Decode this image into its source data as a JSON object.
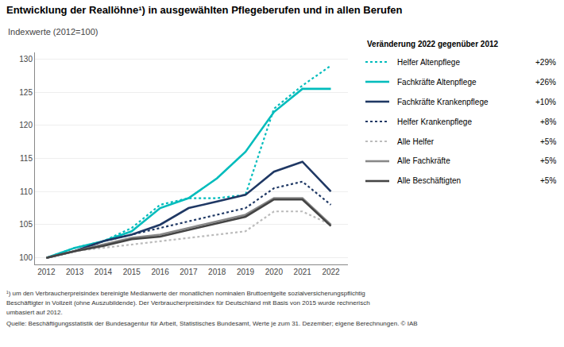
{
  "chart_data": {
    "type": "line",
    "title": "Entwicklung der Reallöhne¹) in ausgewählten Pflegeberufen und in allen Berufen",
    "subtitle": "Indexwerte (2012=100)",
    "legend_title": "Veränderung 2022 gegenüber 2012",
    "x": [
      2012,
      2013,
      2014,
      2015,
      2016,
      2017,
      2018,
      2019,
      2020,
      2021,
      2022
    ],
    "xlim": [
      2011.6,
      2022.6
    ],
    "xticks": [
      2012,
      2013,
      2014,
      2015,
      2016,
      2017,
      2018,
      2019,
      2020,
      2021,
      2022
    ],
    "ylim": [
      99.0,
      131.0
    ],
    "yticks": [
      100,
      105,
      110,
      115,
      120,
      125,
      130
    ],
    "grid": "y",
    "series": [
      {
        "name": "Helfer Altenpflege",
        "annotation": "+29%",
        "color": "#00BCBC",
        "line_style": "dotted",
        "values": [
          100,
          101.5,
          102.5,
          104.5,
          108.0,
          109.0,
          109.0,
          109.5,
          122.5,
          126.0,
          129.0
        ]
      },
      {
        "name": "Fachkräfte Altenpflege",
        "annotation": "+26%",
        "color": "#00BCBC",
        "line_style": "solid",
        "values": [
          100,
          101.5,
          102.5,
          104.0,
          107.5,
          109.0,
          112.0,
          116.0,
          122.0,
          125.5,
          125.5
        ]
      },
      {
        "name": "Fachkräfte Krankenpflege",
        "annotation": "+10%",
        "color": "#1F3864",
        "line_style": "solid",
        "values": [
          100,
          101.0,
          102.5,
          103.5,
          105.0,
          107.5,
          108.5,
          109.5,
          113.0,
          114.5,
          110.0
        ]
      },
      {
        "name": "Helfer Krankenpflege",
        "annotation": "+8%",
        "color": "#1F3864",
        "line_style": "dotted",
        "values": [
          100,
          101.0,
          102.5,
          103.5,
          104.5,
          105.5,
          106.5,
          107.5,
          110.5,
          111.5,
          108.0
        ]
      },
      {
        "name": "Alle Helfer",
        "annotation": "+5%",
        "color": "#BBBBBB",
        "line_style": "dotted",
        "values": [
          100,
          101.0,
          101.5,
          102.0,
          102.5,
          103.0,
          103.5,
          104.0,
          107.0,
          107.0,
          105.0
        ]
      },
      {
        "name": "Alle Fachkräfte",
        "annotation": "+5%",
        "color": "#888888",
        "line_style": "solid",
        "values": [
          100,
          101.0,
          102.0,
          103.0,
          103.5,
          104.5,
          105.5,
          106.5,
          109.0,
          109.0,
          105.0
        ]
      },
      {
        "name": "Alle Beschäftigten",
        "annotation": "+5%",
        "color": "#444444",
        "line_style": "solid",
        "values": [
          100,
          101.0,
          101.8,
          102.8,
          103.2,
          104.2,
          105.2,
          106.2,
          108.8,
          108.8,
          104.8
        ]
      }
    ],
    "footnotes": [
      "¹) um den Verbraucherpreisindex bereinigte Medianwerte der monatlichen nominalen Bruttoentgelte sozialversicherungspflichtig",
      "Beschäftigter in Vollzeit (ohne Auszubildende). Der Verbraucherpreisindex für Deutschland mit Basis von 2015 wurde rechnerisch",
      "umbasiert auf 2012."
    ],
    "source": "Quelle: Beschäftigungsstatistik der Bundesagentur für Arbeit, Statistisches Bundesamt, Werte je zum 31. Dezember; eigene Berechnungen. © IAB"
  }
}
